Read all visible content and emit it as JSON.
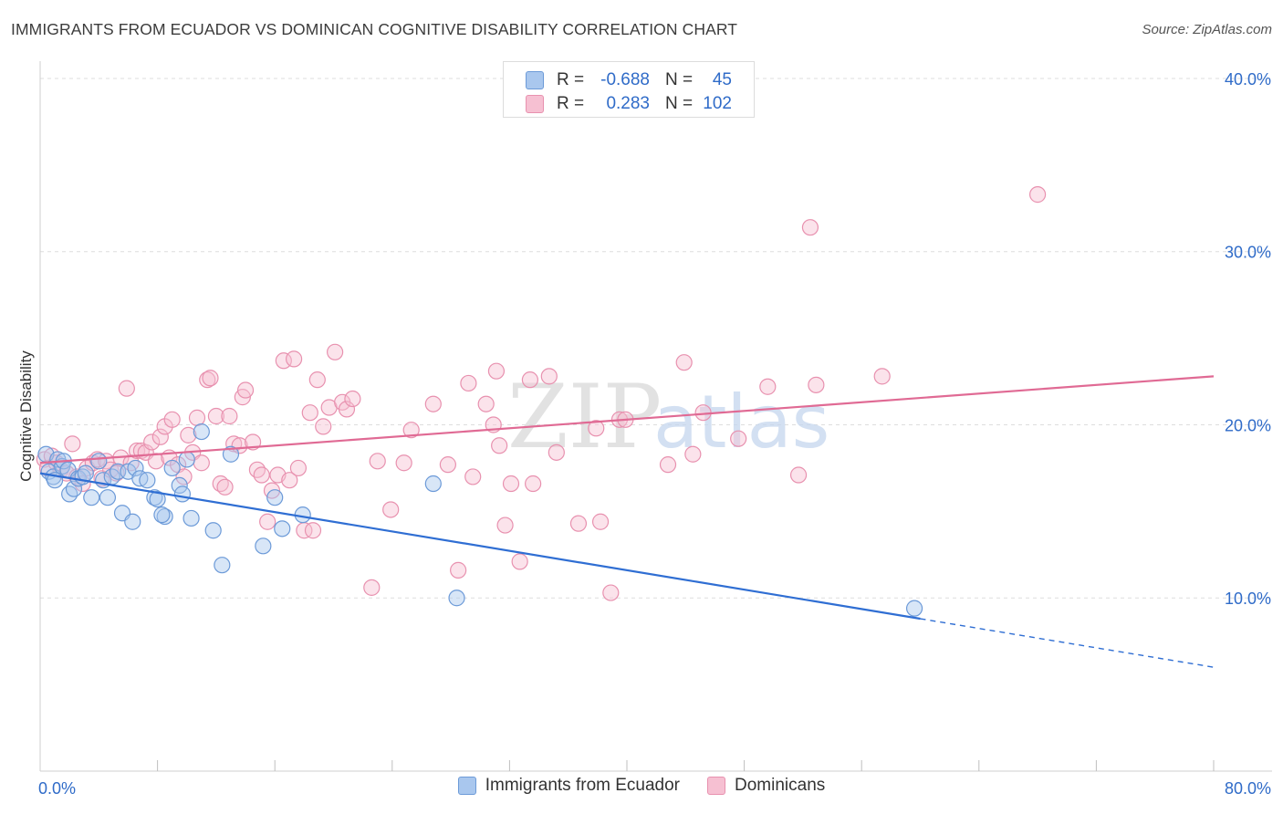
{
  "title": "IMMIGRANTS FROM ECUADOR VS DOMINICAN COGNITIVE DISABILITY CORRELATION CHART",
  "source": "Source: ZipAtlas.com",
  "watermark": {
    "zip": "ZIP",
    "atlas": "atlas"
  },
  "colors": {
    "blue_fill": "#a9c7ee",
    "blue_stroke": "#6c9ad8",
    "blue_line": "#2f6ed3",
    "pink_fill": "#f6c0d2",
    "pink_stroke": "#e891af",
    "pink_line": "#e06a94",
    "value_text": "#2f6bc8"
  },
  "stats": {
    "blue": {
      "r_label": "R =",
      "r_value": "-0.688",
      "n_label": "N =",
      "n_value": "45"
    },
    "pink": {
      "r_label": "R =",
      "r_value": "0.283",
      "n_label": "N =",
      "n_value": "102"
    }
  },
  "legend": {
    "blue": "Immigrants from Ecuador",
    "pink": "Dominicans"
  },
  "chart_data": {
    "type": "scatter",
    "title": "IMMIGRANTS FROM ECUADOR VS DOMINICAN COGNITIVE DISABILITY CORRELATION CHART",
    "xlabel": "",
    "ylabel": "Cognitive Disability",
    "xlim": [
      0,
      80
    ],
    "ylim": [
      0,
      41
    ],
    "x_tick_labels": [
      {
        "value": 0,
        "label": "0.0%"
      },
      {
        "value": 80,
        "label": "80.0%"
      }
    ],
    "y_tick_labels": [
      {
        "value": 10,
        "label": "10.0%"
      },
      {
        "value": 20,
        "label": "20.0%"
      },
      {
        "value": 30,
        "label": "30.0%"
      },
      {
        "value": 40,
        "label": "40.0%"
      }
    ],
    "y_gridlines": [
      10,
      20,
      30,
      40
    ],
    "grid": true,
    "legend_position": "bottom",
    "series": [
      {
        "name": "Immigrants from Ecuador",
        "color": "#a9c7ee",
        "points": [
          [
            0.4,
            18.3
          ],
          [
            0.6,
            17.3
          ],
          [
            0.9,
            17.0
          ],
          [
            1.0,
            16.8
          ],
          [
            1.2,
            18.0
          ],
          [
            1.5,
            17.6
          ],
          [
            1.6,
            17.9
          ],
          [
            1.9,
            17.4
          ],
          [
            2.0,
            16.0
          ],
          [
            2.3,
            16.3
          ],
          [
            2.6,
            16.9
          ],
          [
            2.9,
            17.0
          ],
          [
            3.1,
            17.2
          ],
          [
            3.5,
            15.8
          ],
          [
            4.0,
            17.9
          ],
          [
            4.3,
            16.8
          ],
          [
            4.6,
            15.8
          ],
          [
            4.9,
            17.0
          ],
          [
            5.3,
            17.3
          ],
          [
            5.6,
            14.9
          ],
          [
            6.0,
            17.3
          ],
          [
            6.3,
            14.4
          ],
          [
            6.5,
            17.5
          ],
          [
            6.8,
            16.9
          ],
          [
            7.3,
            16.8
          ],
          [
            7.8,
            15.8
          ],
          [
            8.0,
            15.7
          ],
          [
            8.5,
            14.7
          ],
          [
            8.3,
            14.8
          ],
          [
            9.0,
            17.5
          ],
          [
            9.5,
            16.5
          ],
          [
            9.7,
            16.0
          ],
          [
            10.0,
            18.0
          ],
          [
            10.3,
            14.6
          ],
          [
            11.0,
            19.6
          ],
          [
            11.8,
            13.9
          ],
          [
            12.4,
            11.9
          ],
          [
            13.0,
            18.3
          ],
          [
            15.2,
            13.0
          ],
          [
            16.0,
            15.8
          ],
          [
            16.5,
            14.0
          ],
          [
            17.9,
            14.8
          ],
          [
            26.8,
            16.6
          ],
          [
            28.4,
            10.0
          ],
          [
            59.6,
            9.4
          ]
        ]
      },
      {
        "name": "Dominicans",
        "color": "#f6c0d2",
        "points": [
          [
            0.3,
            18.0
          ],
          [
            0.5,
            17.5
          ],
          [
            0.8,
            18.2
          ],
          [
            1.1,
            17.8
          ],
          [
            1.4,
            17.4
          ],
          [
            1.8,
            17.2
          ],
          [
            2.2,
            18.9
          ],
          [
            2.5,
            17.0
          ],
          [
            2.9,
            16.6
          ],
          [
            3.2,
            17.5
          ],
          [
            3.6,
            17.8
          ],
          [
            3.9,
            18.0
          ],
          [
            4.2,
            16.9
          ],
          [
            4.5,
            17.9
          ],
          [
            4.8,
            17.4
          ],
          [
            5.2,
            17.2
          ],
          [
            5.5,
            18.1
          ],
          [
            5.9,
            22.1
          ],
          [
            6.2,
            17.8
          ],
          [
            6.6,
            18.5
          ],
          [
            6.9,
            18.5
          ],
          [
            7.2,
            18.4
          ],
          [
            7.6,
            19.0
          ],
          [
            7.9,
            17.9
          ],
          [
            8.2,
            19.3
          ],
          [
            8.5,
            19.9
          ],
          [
            8.8,
            18.1
          ],
          [
            9.0,
            20.3
          ],
          [
            9.4,
            17.7
          ],
          [
            9.8,
            17.0
          ],
          [
            10.1,
            19.4
          ],
          [
            10.4,
            18.4
          ],
          [
            10.7,
            20.4
          ],
          [
            11.0,
            17.8
          ],
          [
            11.4,
            22.6
          ],
          [
            11.6,
            22.7
          ],
          [
            12.0,
            20.5
          ],
          [
            12.3,
            16.6
          ],
          [
            12.6,
            16.4
          ],
          [
            12.9,
            20.5
          ],
          [
            13.2,
            18.9
          ],
          [
            13.6,
            18.8
          ],
          [
            13.8,
            21.6
          ],
          [
            14.0,
            22.0
          ],
          [
            14.5,
            19.0
          ],
          [
            14.8,
            17.4
          ],
          [
            15.1,
            17.1
          ],
          [
            15.5,
            14.4
          ],
          [
            15.8,
            16.2
          ],
          [
            16.2,
            17.1
          ],
          [
            16.6,
            23.7
          ],
          [
            17.0,
            16.8
          ],
          [
            17.3,
            23.8
          ],
          [
            17.6,
            17.5
          ],
          [
            18.0,
            13.9
          ],
          [
            18.4,
            20.7
          ],
          [
            18.6,
            13.9
          ],
          [
            18.9,
            22.6
          ],
          [
            19.3,
            19.9
          ],
          [
            19.7,
            21.0
          ],
          [
            20.1,
            24.2
          ],
          [
            20.6,
            21.3
          ],
          [
            20.9,
            20.9
          ],
          [
            21.3,
            21.5
          ],
          [
            22.6,
            10.6
          ],
          [
            23.0,
            17.9
          ],
          [
            23.9,
            15.1
          ],
          [
            24.8,
            17.8
          ],
          [
            25.3,
            19.7
          ],
          [
            26.8,
            21.2
          ],
          [
            27.8,
            17.7
          ],
          [
            28.5,
            11.6
          ],
          [
            29.2,
            22.4
          ],
          [
            29.5,
            17.0
          ],
          [
            30.4,
            21.2
          ],
          [
            30.9,
            20.0
          ],
          [
            31.1,
            23.1
          ],
          [
            31.3,
            18.8
          ],
          [
            31.7,
            14.2
          ],
          [
            32.1,
            16.6
          ],
          [
            32.7,
            12.1
          ],
          [
            33.4,
            22.6
          ],
          [
            33.6,
            16.6
          ],
          [
            34.7,
            22.8
          ],
          [
            35.2,
            18.4
          ],
          [
            36.7,
            14.3
          ],
          [
            37.9,
            19.8
          ],
          [
            38.2,
            14.4
          ],
          [
            38.9,
            10.3
          ],
          [
            39.5,
            20.3
          ],
          [
            39.9,
            20.3
          ],
          [
            42.8,
            17.7
          ],
          [
            43.9,
            23.6
          ],
          [
            44.5,
            18.3
          ],
          [
            45.2,
            20.7
          ],
          [
            47.6,
            19.2
          ],
          [
            49.6,
            22.2
          ],
          [
            51.7,
            17.1
          ],
          [
            52.5,
            31.4
          ],
          [
            52.9,
            22.3
          ],
          [
            57.4,
            22.8
          ],
          [
            68.0,
            33.3
          ]
        ]
      }
    ],
    "trend_lines": [
      {
        "series": "Immigrants from Ecuador",
        "solid": [
          [
            0,
            17.2
          ],
          [
            60,
            8.8
          ]
        ],
        "dashed": [
          [
            60,
            8.8
          ],
          [
            80,
            6.0
          ]
        ]
      },
      {
        "series": "Dominicans",
        "solid": [
          [
            0,
            17.8
          ],
          [
            80,
            22.8
          ]
        ]
      }
    ]
  }
}
